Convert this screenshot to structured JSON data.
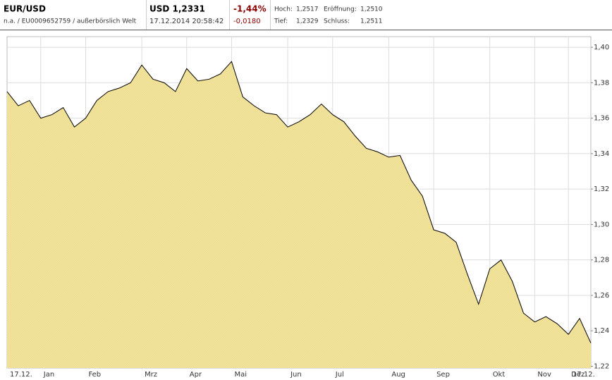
{
  "header": {
    "symbol": "EUR/USD",
    "subtitle": "n.a. / EU0009652759 / außerbörslich Welt",
    "price": "USD 1,2331",
    "timestamp": "17.12.2014 20:58:42",
    "change_pct": "-1,44%",
    "change_abs": "-0,0180",
    "stats": [
      [
        "Hoch:",
        "1,2517"
      ],
      [
        "Eröffnung:",
        "1,2510"
      ],
      [
        "Tief:",
        "1,2329"
      ],
      [
        "Schluss:",
        "1,2511"
      ]
    ]
  },
  "chart_data": {
    "type": "area",
    "categories": [
      "17.12.",
      null,
      null,
      "Jan",
      null,
      null,
      null,
      "Feb",
      null,
      null,
      null,
      null,
      "Mrz",
      null,
      null,
      null,
      "Apr",
      null,
      null,
      null,
      "Mai",
      null,
      null,
      null,
      null,
      "Jun",
      null,
      null,
      null,
      "Jul",
      null,
      null,
      null,
      null,
      "Aug",
      null,
      null,
      null,
      "Sep",
      null,
      null,
      null,
      null,
      "Okt",
      null,
      null,
      null,
      "Nov",
      null,
      null,
      "Dez",
      null,
      "17.12."
    ],
    "values": [
      1.375,
      1.367,
      1.37,
      1.36,
      1.362,
      1.366,
      1.355,
      1.36,
      1.37,
      1.375,
      1.377,
      1.38,
      1.39,
      1.382,
      1.38,
      1.375,
      1.388,
      1.381,
      1.382,
      1.385,
      1.392,
      1.372,
      1.367,
      1.363,
      1.362,
      1.355,
      1.358,
      1.362,
      1.368,
      1.362,
      1.358,
      1.35,
      1.343,
      1.341,
      1.338,
      1.339,
      1.325,
      1.316,
      1.297,
      1.295,
      1.29,
      1.272,
      1.255,
      1.275,
      1.28,
      1.268,
      1.25,
      1.245,
      1.248,
      1.244,
      1.238,
      1.247,
      1.2331
    ],
    "color": "#f2e39c",
    "line_color": "#000000",
    "ylim": [
      1.219,
      1.406
    ],
    "yticks": [
      {
        "value": 1.22,
        "label": "1,22"
      },
      {
        "value": 1.24,
        "label": "1,24"
      },
      {
        "value": 1.26,
        "label": "1,26"
      },
      {
        "value": 1.28,
        "label": "1,28"
      },
      {
        "value": 1.3,
        "label": "1,30"
      },
      {
        "value": 1.32,
        "label": "1,32"
      },
      {
        "value": 1.34,
        "label": "1,34"
      },
      {
        "value": 1.36,
        "label": "1,36"
      },
      {
        "value": 1.38,
        "label": "1,38"
      },
      {
        "value": 1.4,
        "label": "1,40"
      }
    ],
    "grid": true
  }
}
